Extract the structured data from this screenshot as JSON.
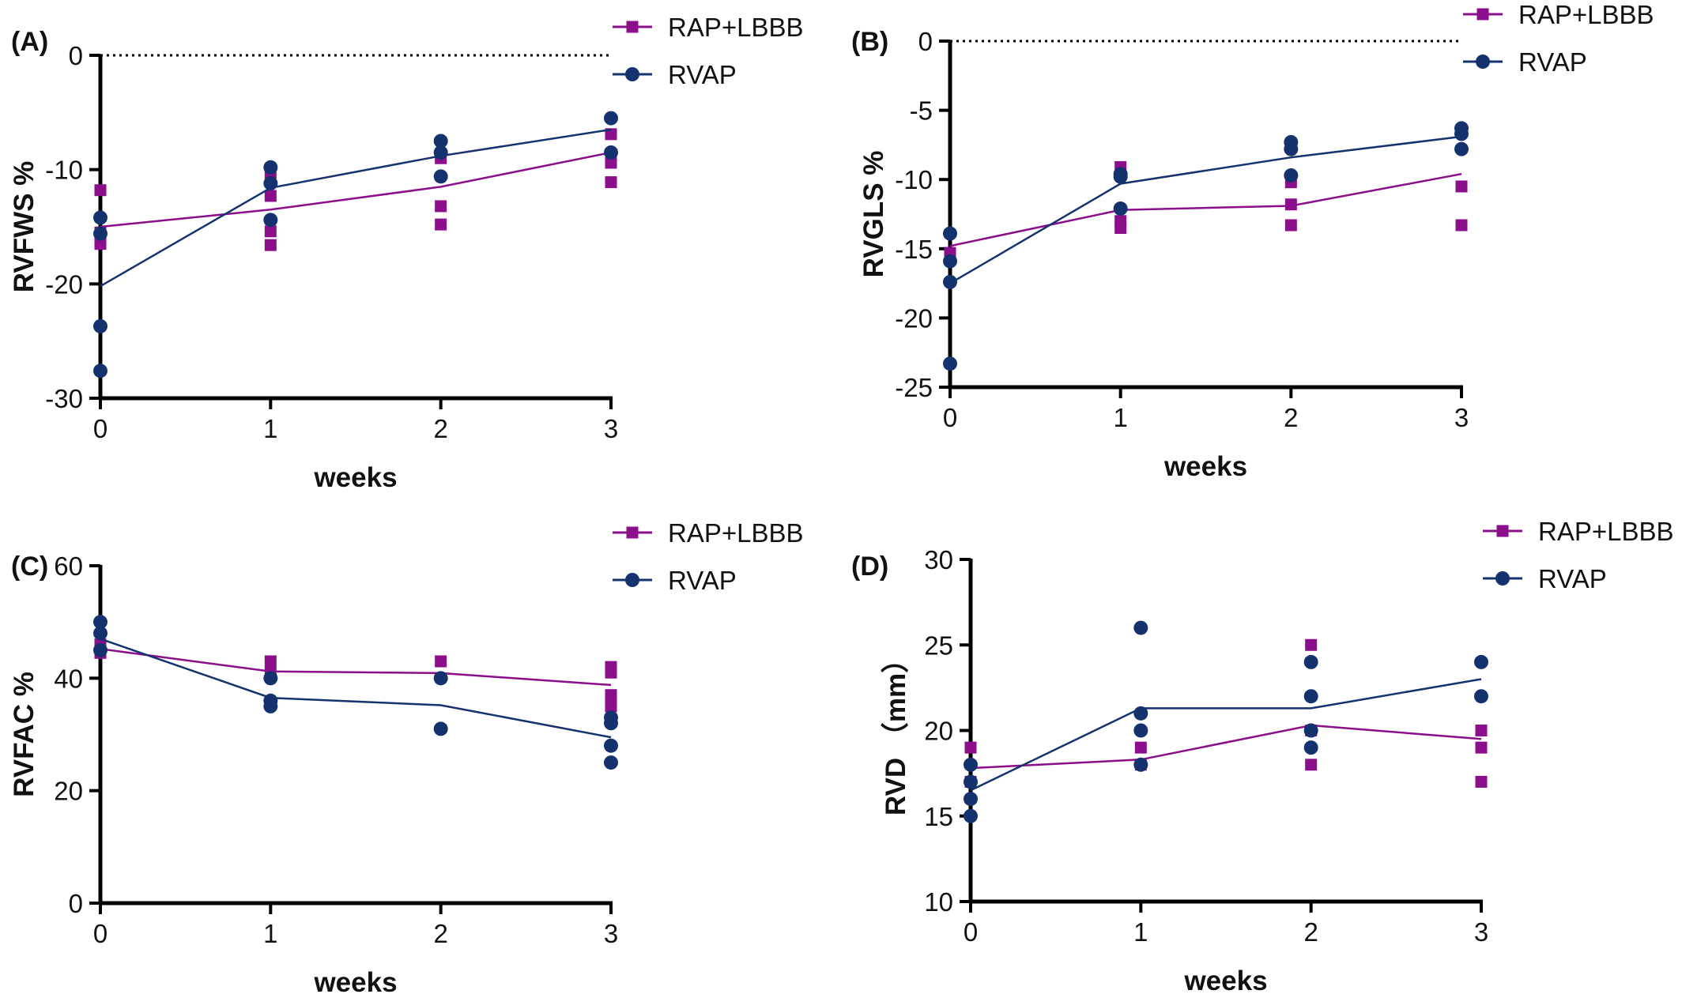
{
  "colors": {
    "rap": "#8B0E8B",
    "rvap": "#14336E",
    "axis": "#000000"
  },
  "legend": [
    {
      "name": "RAP+LBBB",
      "marker": "square"
    },
    {
      "name": "RVAP",
      "marker": "circle"
    }
  ],
  "chart_data": [
    {
      "panel": "(A)",
      "type": "scatter",
      "xlabel": "weeks",
      "ylabel": "RVFWS %",
      "xlim": [
        0,
        3
      ],
      "ylim": [
        -30,
        0
      ],
      "xticks": [
        "0",
        "1",
        "2",
        "3"
      ],
      "yticks": [
        "0",
        "-10",
        "-20",
        "-30"
      ],
      "reference_line": {
        "y": 0,
        "style": "dotted"
      },
      "legend_position": "top-right",
      "series": [
        {
          "name": "RAP+LBBB",
          "marker": "square",
          "line": [
            [
              0,
              -15
            ],
            [
              1,
              -13.5
            ],
            [
              2,
              -11.5
            ],
            [
              3,
              -8.5
            ]
          ],
          "points": [
            [
              0,
              -11.8
            ],
            [
              0,
              -15.5
            ],
            [
              0,
              -16.5
            ],
            [
              1,
              -10.3
            ],
            [
              1,
              -12.3
            ],
            [
              1,
              -15.4
            ],
            [
              1,
              -16.6
            ],
            [
              2,
              -9
            ],
            [
              2,
              -13.2
            ],
            [
              2,
              -14.8
            ],
            [
              3,
              -6.9
            ],
            [
              3,
              -9.4
            ],
            [
              3,
              -11.1
            ]
          ]
        },
        {
          "name": "RVAP",
          "marker": "circle",
          "line": [
            [
              0,
              -20.2
            ],
            [
              1,
              -11.6
            ],
            [
              2,
              -8.8
            ],
            [
              3,
              -6.5
            ]
          ],
          "points": [
            [
              0,
              -14.2
            ],
            [
              0,
              -15.6
            ],
            [
              0,
              -23.7
            ],
            [
              0,
              -27.6
            ],
            [
              1,
              -9.8
            ],
            [
              1,
              -11.2
            ],
            [
              1,
              -14.4
            ],
            [
              2,
              -7.5
            ],
            [
              2,
              -8.5
            ],
            [
              2,
              -10.6
            ],
            [
              3,
              -5.5
            ],
            [
              3,
              -8.5
            ]
          ]
        }
      ]
    },
    {
      "panel": "(B)",
      "type": "scatter",
      "xlabel": "weeks",
      "ylabel": "RVGLS %",
      "xlim": [
        0,
        3
      ],
      "ylim": [
        -25,
        0
      ],
      "xticks": [
        "0",
        "1",
        "2",
        "3"
      ],
      "yticks": [
        "0",
        "-5",
        "-10",
        "-15",
        "-20",
        "-25"
      ],
      "reference_line": {
        "y": 0,
        "style": "dotted"
      },
      "legend_position": "top-right",
      "series": [
        {
          "name": "RAP+LBBB",
          "marker": "square",
          "line": [
            [
              0,
              -14.8
            ],
            [
              1,
              -12.2
            ],
            [
              2,
              -11.9
            ],
            [
              3,
              -9.6
            ]
          ],
          "points": [
            [
              0,
              -15.3
            ],
            [
              1,
              -9.1
            ],
            [
              1,
              -13
            ],
            [
              1,
              -13.5
            ],
            [
              2,
              -10.2
            ],
            [
              2,
              -11.8
            ],
            [
              2,
              -13.3
            ],
            [
              3,
              -10.5
            ],
            [
              3,
              -13.3
            ]
          ]
        },
        {
          "name": "RVAP",
          "marker": "circle",
          "line": [
            [
              0,
              -17.5
            ],
            [
              1,
              -10.3
            ],
            [
              2,
              -8.4
            ],
            [
              3,
              -6.9
            ]
          ],
          "points": [
            [
              0,
              -13.9
            ],
            [
              0,
              -15.9
            ],
            [
              0,
              -17.4
            ],
            [
              0,
              -23.3
            ],
            [
              1,
              -9.6
            ],
            [
              1,
              -9.8
            ],
            [
              1,
              -12.1
            ],
            [
              2,
              -7.3
            ],
            [
              2,
              -7.8
            ],
            [
              2,
              -9.7
            ],
            [
              3,
              -6.3
            ],
            [
              3,
              -6.7
            ],
            [
              3,
              -7.8
            ]
          ]
        }
      ]
    },
    {
      "panel": "(C)",
      "type": "scatter",
      "xlabel": "weeks",
      "ylabel": "RVFAC %",
      "xlim": [
        0,
        3
      ],
      "ylim": [
        0,
        60
      ],
      "xticks": [
        "0",
        "1",
        "2",
        "3"
      ],
      "yticks": [
        "0",
        "20",
        "40",
        "60"
      ],
      "legend_position": "top-right",
      "series": [
        {
          "name": "RAP+LBBB",
          "marker": "square",
          "line": [
            [
              0,
              45.2
            ],
            [
              1,
              41.2
            ],
            [
              2,
              40.9
            ],
            [
              3,
              38.8
            ]
          ],
          "points": [
            [
              0,
              44.5
            ],
            [
              0,
              46
            ],
            [
              1,
              43
            ],
            [
              1,
              41
            ],
            [
              2,
              43
            ],
            [
              3,
              42
            ],
            [
              3,
              41
            ],
            [
              3,
              37
            ],
            [
              3,
              35
            ]
          ]
        },
        {
          "name": "RVAP",
          "marker": "circle",
          "line": [
            [
              0,
              47
            ],
            [
              1,
              36.5
            ],
            [
              2,
              35.2
            ],
            [
              3,
              29.5
            ]
          ],
          "points": [
            [
              0,
              50
            ],
            [
              0,
              48
            ],
            [
              0,
              45
            ],
            [
              1,
              40
            ],
            [
              1,
              36
            ],
            [
              1,
              35
            ],
            [
              2,
              40
            ],
            [
              2,
              31
            ],
            [
              3,
              33
            ],
            [
              3,
              32
            ],
            [
              3,
              28
            ],
            [
              3,
              25
            ]
          ]
        }
      ]
    },
    {
      "panel": "(D)",
      "type": "scatter",
      "xlabel": "weeks",
      "ylabel": "RVD （mm）",
      "xlim": [
        0,
        3
      ],
      "ylim": [
        10,
        30
      ],
      "xticks": [
        "0",
        "1",
        "2",
        "3"
      ],
      "yticks": [
        "10",
        "15",
        "20",
        "25",
        "30"
      ],
      "legend_position": "top-right",
      "series": [
        {
          "name": "RAP+LBBB",
          "marker": "square",
          "line": [
            [
              0,
              17.8
            ],
            [
              1,
              18.3
            ],
            [
              2,
              20.3
            ],
            [
              3,
              19.5
            ]
          ],
          "points": [
            [
              0,
              19
            ],
            [
              0,
              17
            ],
            [
              1,
              19
            ],
            [
              1,
              18
            ],
            [
              2,
              25
            ],
            [
              2,
              20
            ],
            [
              2,
              18
            ],
            [
              3,
              20
            ],
            [
              3,
              19
            ],
            [
              3,
              17
            ]
          ]
        },
        {
          "name": "RVAP",
          "marker": "circle",
          "line": [
            [
              0,
              16.5
            ],
            [
              1,
              21.3
            ],
            [
              2,
              21.3
            ],
            [
              3,
              23
            ]
          ],
          "points": [
            [
              0,
              18
            ],
            [
              0,
              17
            ],
            [
              0,
              16
            ],
            [
              0,
              15
            ],
            [
              1,
              26
            ],
            [
              1,
              21
            ],
            [
              1,
              20
            ],
            [
              1,
              18
            ],
            [
              2,
              24
            ],
            [
              2,
              22
            ],
            [
              2,
              20
            ],
            [
              2,
              19
            ],
            [
              3,
              24
            ],
            [
              3,
              22
            ]
          ]
        }
      ]
    }
  ]
}
